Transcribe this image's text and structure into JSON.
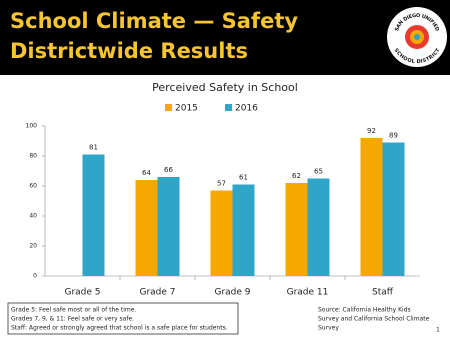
{
  "header": {
    "title": [
      "School Climate — Safety",
      "Districtwide Results"
    ],
    "logo_text": [
      "SAN DIEGO UNIFIED",
      "SCHOOL DISTRICT"
    ]
  },
  "chart_data": {
    "type": "bar",
    "title": "Perceived Safety in School",
    "categories": [
      "Grade 5",
      "Grade 7",
      "Grade 9",
      "Grade 11",
      "Staff"
    ],
    "series": [
      {
        "name": "2015",
        "color": "#f5a800",
        "values": [
          null,
          64,
          57,
          62,
          92
        ]
      },
      {
        "name": "2016",
        "color": "#2fa6c8",
        "values": [
          81,
          66,
          61,
          65,
          89
        ]
      }
    ],
    "ylim": [
      0,
      100
    ],
    "yticks": [
      0,
      20,
      40,
      60,
      80,
      100
    ],
    "grid": false,
    "legend": "top"
  },
  "notes": [
    "Grade 5: Feel safe most or all of the time.",
    "Grades 7, 9, & 11: Feel safe or very safe.",
    "Staff:  Agreed or strongly agreed that school is a safe place for students."
  ],
  "source": [
    "Source: California Healthy Kids",
    "Survey and California School Climate",
    "Survey"
  ],
  "page_number": "1"
}
